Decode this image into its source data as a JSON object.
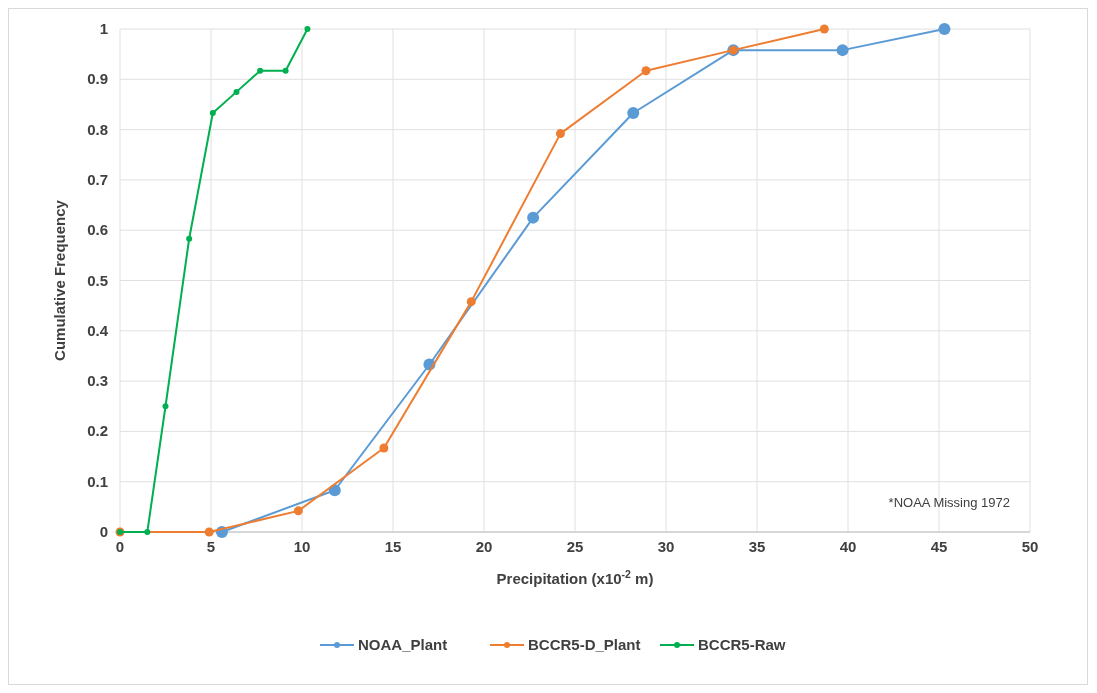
{
  "chart_data": {
    "type": "line",
    "xlabel": "Precipitation (x10$^{-2}$ m)",
    "ylabel": "Cumulative Frequency",
    "xlim": [
      0,
      50
    ],
    "xticks": [
      0,
      5,
      10,
      15,
      20,
      25,
      30,
      35,
      40,
      45,
      50
    ],
    "ylim": [
      0,
      1
    ],
    "yticks": [
      0,
      0.1,
      0.2,
      0.3,
      0.4,
      0.5,
      0.6,
      0.7,
      0.8,
      0.9,
      1
    ],
    "grid": true,
    "legend": "bottom",
    "marker": "circle",
    "annotations": [
      "*NOAA Missing 1972"
    ],
    "series": [
      {
        "name": "NOAA_Plant",
        "color": "#5b9bd5",
        "x": [
          5.6,
          11.8,
          17.0,
          22.7,
          28.2,
          33.7,
          39.7,
          45.3
        ],
        "values": [
          0,
          0.083,
          0.333,
          0.625,
          0.833,
          0.958,
          0.958,
          1
        ]
      },
      {
        "name": "BCCR5-D_Plant",
        "color": "#ed7d31",
        "x": [
          0,
          4.9,
          9.8,
          14.5,
          19.3,
          24.2,
          28.9,
          33.7,
          38.7
        ],
        "values": [
          0,
          0,
          0.042,
          0.167,
          0.458,
          0.792,
          0.917,
          0.958,
          1
        ]
      },
      {
        "name": "BCCR5-Raw",
        "color": "#00b050",
        "x": [
          0,
          1.5,
          2.5,
          3.8,
          5.1,
          6.4,
          7.7,
          9.1,
          10.3
        ],
        "values": [
          0,
          0,
          0.25,
          0.583,
          0.833,
          0.875,
          0.917,
          0.917,
          1
        ]
      }
    ]
  }
}
